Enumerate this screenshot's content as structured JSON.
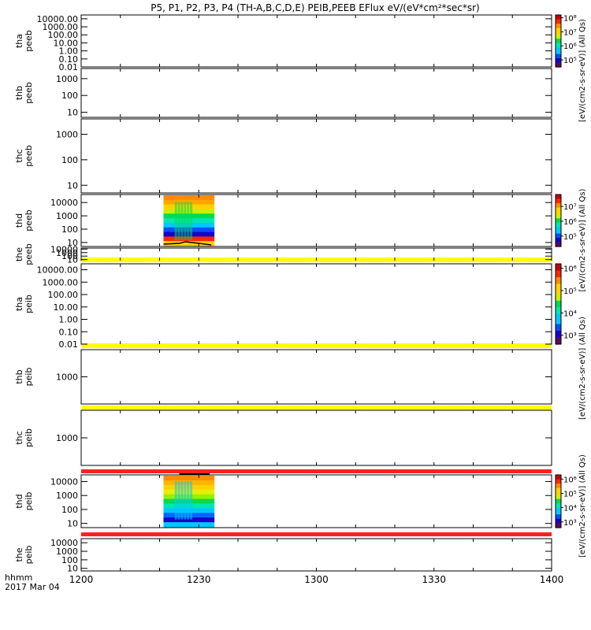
{
  "title": "P5, P1, P2, P3, P4 (TH-A,B,C,D,E) PEIB,PEEB EFlux eV/(eV*cm²*sec*sr)",
  "footer": {
    "label_line1": "hhmm",
    "label_line2": "2017 Mar 04"
  },
  "colors": {
    "spectrum": [
      "#5a0a5a",
      "#1a00c8",
      "#0050ff",
      "#00c8ff",
      "#00e6b4",
      "#00dc50",
      "#c8f000",
      "#ffd200",
      "#ff8c00",
      "#ff2800",
      "#c80000"
    ]
  },
  "chart_data": {
    "type": "heatmap",
    "x_axis": {
      "ticks": [
        "1200",
        "1230",
        "1300",
        "1330",
        "1400"
      ]
    },
    "panels": [
      {
        "id": "tha-peeb",
        "label_probe": "tha",
        "label_product": "peeb",
        "y_ticks": [
          "10000.00",
          "1000.00",
          "100.00",
          "10.00",
          "1.00",
          "0.10",
          "0.01"
        ],
        "ylim": [
          0.01,
          30000
        ],
        "data_block": null,
        "bar": null
      },
      {
        "id": "thb-peeb",
        "label_probe": "thb",
        "label_product": "peeb",
        "y_ticks": [
          "1000",
          "100",
          "10"
        ],
        "ylim": [
          5,
          4000
        ],
        "data_block": null,
        "bar": null
      },
      {
        "id": "thc-peeb",
        "label_probe": "thc",
        "label_product": "peeb",
        "y_ticks": [
          "1000",
          "100",
          "10"
        ],
        "ylim": [
          5,
          4000
        ],
        "data_block": null,
        "bar": null
      },
      {
        "id": "thd-peeb",
        "label_probe": "thd",
        "label_product": "peeb",
        "y_ticks": [
          "10000",
          "1000",
          "100",
          "10"
        ],
        "ylim": [
          5,
          40000
        ],
        "data_block": {
          "start": "1221",
          "end": "1234"
        },
        "bar": null
      },
      {
        "id": "the-peeb",
        "label_probe": "the",
        "label_product": "peeb",
        "y_ticks": [
          "10000",
          "1000",
          "100",
          "10"
        ],
        "ylim": [
          5,
          20000
        ],
        "data_block": null,
        "bar": "yellow"
      },
      {
        "id": "tha-peib",
        "label_probe": "tha",
        "label_product": "peib",
        "y_ticks": [
          "10000.00",
          "1000.00",
          "100.00",
          "10.00",
          "1.00",
          "0.10",
          "0.01"
        ],
        "ylim": [
          0.01,
          30000
        ],
        "data_block": null,
        "bar": "yellow"
      },
      {
        "id": "thb-peib",
        "label_probe": "thb",
        "label_product": "peib",
        "y_ticks": [
          "1000"
        ],
        "ylim": [
          100,
          10000
        ],
        "data_block": null,
        "bar": "yellow"
      },
      {
        "id": "thc-peib",
        "label_probe": "thc",
        "label_product": "peib",
        "y_ticks": [
          "1000"
        ],
        "ylim": [
          100,
          10000
        ],
        "data_block": null,
        "bar": "red"
      },
      {
        "id": "thd-peib",
        "label_probe": "thd",
        "label_product": "peib",
        "y_ticks": [
          "10000",
          "1000",
          "100",
          "10"
        ],
        "ylim": [
          5,
          30000
        ],
        "data_block": {
          "start": "1221",
          "end": "1234"
        },
        "bar": "red"
      },
      {
        "id": "the-peib",
        "label_probe": "the",
        "label_product": "peib",
        "y_ticks": [
          "10000",
          "1000",
          "100",
          "10"
        ],
        "ylim": [
          5,
          30000
        ],
        "data_block": null,
        "bar": null
      }
    ],
    "colorbars": [
      {
        "id": "cb-1",
        "unit_label": "[eV/(cm2-s-sr-eV)] (All Qs)",
        "ticks": [
          "10⁸",
          "10⁷",
          "10⁶",
          "10⁵"
        ],
        "log_range": [
          4.5,
          8.2
        ]
      },
      {
        "id": "cb-2",
        "unit_label": "[eV/(cm2-s-sr-eV)] (All Qs)",
        "ticks": [
          "10⁷",
          "10⁶",
          "10⁵"
        ],
        "log_range": [
          4.3,
          7.8
        ]
      },
      {
        "id": "cb-3",
        "unit_label": "[eV/(cm2-s-sr-eV)] (All Qs)",
        "ticks": [
          "10⁶",
          "10⁵",
          "10⁴",
          "10³"
        ],
        "log_range": [
          2.6,
          6.2
        ]
      },
      {
        "id": "cb-4",
        "unit_label": "[eV/(cm2-s-sr-eV)] (All Qs)",
        "ticks": [
          "10⁶",
          "10⁵",
          "10⁴",
          "10³"
        ],
        "log_range": [
          2.6,
          6.3
        ]
      }
    ]
  }
}
